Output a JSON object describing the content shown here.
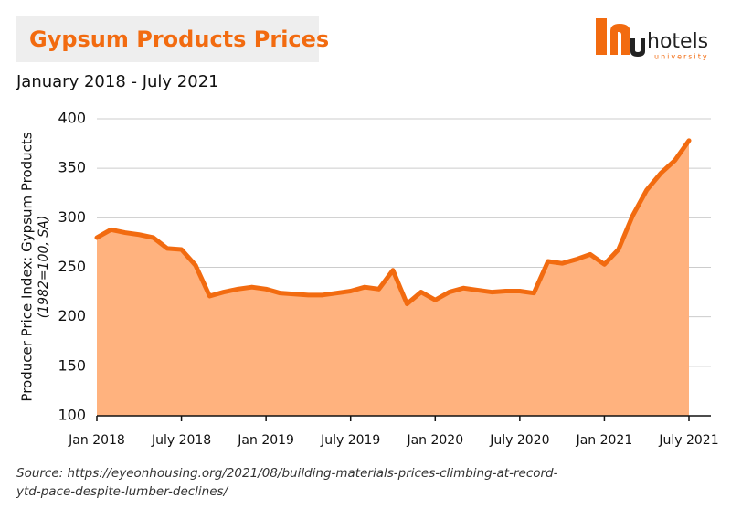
{
  "chart_data": {
    "type": "area",
    "title": "Gypsum Products Prices",
    "subtitle": "January 2018 - July 2021",
    "y_label": "Producer Price Index: Gypsum Products",
    "y_label_note": "(1982=100, SA)",
    "source": [
      "Source: https://eyeonhousing.org/2021/08/building-materials-prices-climbing-at-record-",
      "ytd-pace-despite-lumber-declines/"
    ],
    "logo": {
      "text": "hotels",
      "subtext": "university"
    },
    "categories": [
      "Jan 2018",
      null,
      null,
      null,
      null,
      null,
      "July 2018",
      null,
      null,
      null,
      null,
      null,
      "Jan 2019",
      null,
      null,
      null,
      null,
      null,
      "July 2019",
      null,
      null,
      null,
      null,
      null,
      "Jan 2020",
      null,
      null,
      null,
      null,
      null,
      "July 2020",
      null,
      null,
      null,
      null,
      null,
      "Jan 2021",
      null,
      null,
      null,
      null,
      null,
      "July 2021"
    ],
    "values": [
      280,
      288,
      285,
      283,
      280,
      269,
      268,
      252,
      221,
      225,
      228,
      230,
      228,
      224,
      223,
      222,
      222,
      224,
      226,
      230,
      228,
      247,
      213,
      225,
      217,
      225,
      229,
      227,
      225,
      226,
      226,
      224,
      256,
      254,
      258,
      263,
      253,
      268,
      302,
      328,
      345,
      358,
      378
    ],
    "color": "#f26b10",
    "fill_color": "#ffb27e",
    "ylim": [
      100,
      400
    ],
    "yticks": [
      100,
      150,
      200,
      250,
      300,
      350,
      400
    ],
    "grid": true
  }
}
